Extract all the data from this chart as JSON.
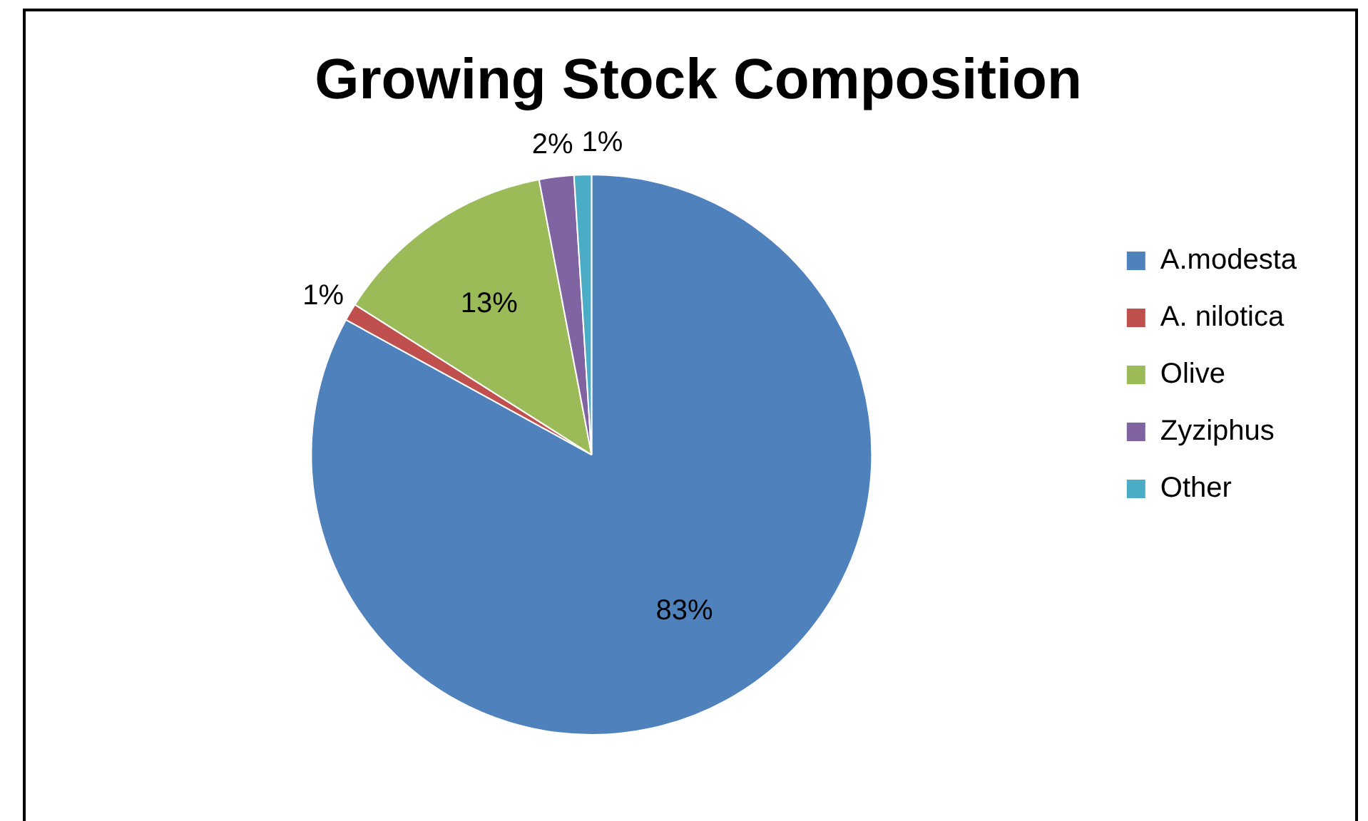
{
  "chart_data": {
    "type": "pie",
    "title": "Growing Stock Composition",
    "categories": [
      "A.modesta",
      "A. nilotica",
      "Olive",
      "Zyziphus",
      "Other"
    ],
    "values": [
      83,
      1,
      13,
      2,
      1
    ],
    "colors": [
      "#4f81bd",
      "#c0504d",
      "#9bbb59",
      "#8064a2",
      "#4bacc6"
    ],
    "value_labels": [
      "83%",
      "1%",
      "13%",
      "2%",
      "1%"
    ],
    "legend": "right"
  }
}
